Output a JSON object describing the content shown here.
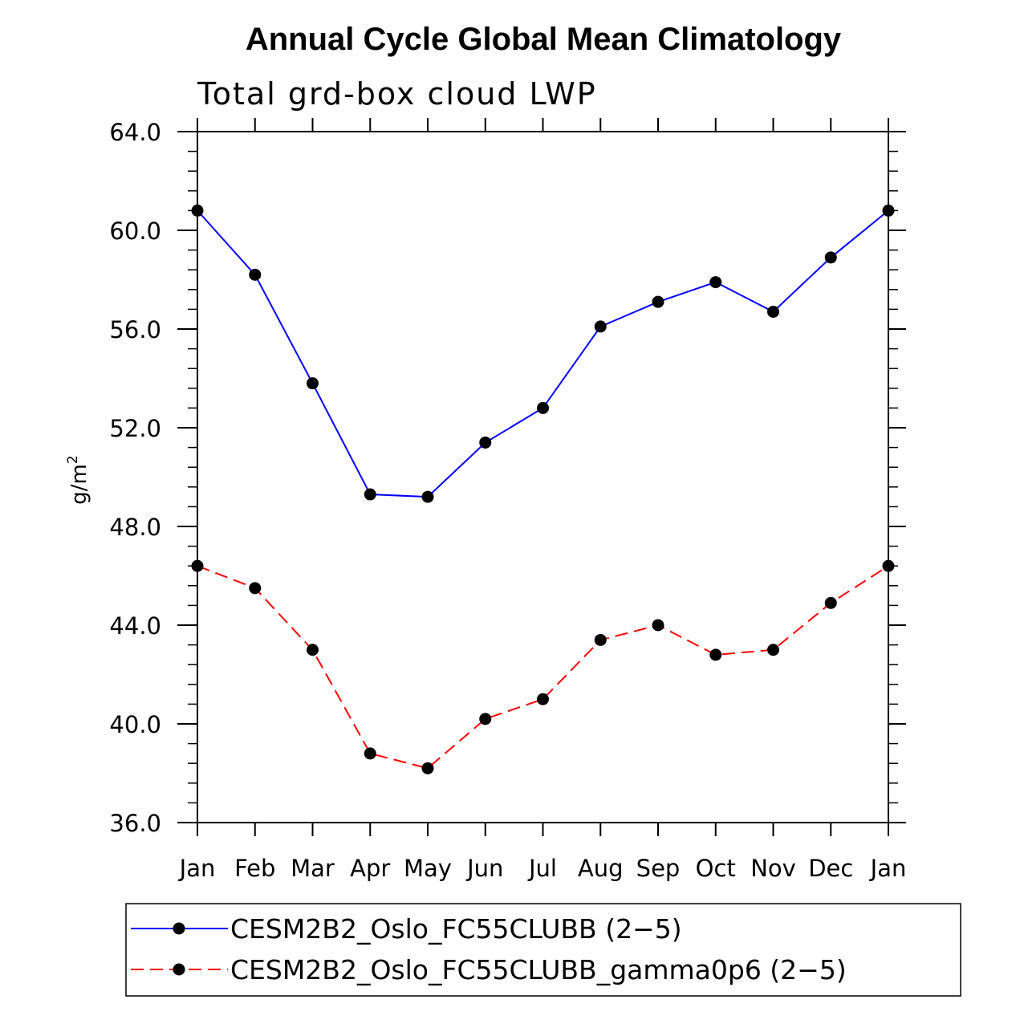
{
  "chart_data": {
    "type": "line",
    "title": "Annual Cycle Global Mean Climatology",
    "subtitle": "Total grd-box cloud LWP",
    "ylabel": "g/m",
    "ylabel_superscript": "2",
    "xlabel": "",
    "categories": [
      "Jan",
      "Feb",
      "Mar",
      "Apr",
      "May",
      "Jun",
      "Jul",
      "Aug",
      "Sep",
      "Oct",
      "Nov",
      "Dec",
      "Jan"
    ],
    "ylim": [
      36,
      64
    ],
    "yticks": [
      "36.0",
      "40.0",
      "44.0",
      "48.0",
      "52.0",
      "56.0",
      "60.0",
      "64.0"
    ],
    "grid": false,
    "legend_position": "bottom",
    "series": [
      {
        "name": "CESM2B2_Oslo_FC55CLUBB (2-5)",
        "legend_label": "CESM2B2_Oslo_FC55CLUBB (2−5)",
        "color": "#0000ff",
        "dash": "solid",
        "values": [
          60.8,
          58.2,
          53.8,
          49.3,
          49.2,
          51.4,
          52.8,
          56.1,
          57.1,
          57.9,
          56.7,
          58.9,
          60.8
        ]
      },
      {
        "name": "CESM2B2_Oslo_FC55CLUBB_gamma0p6 (2-5)",
        "legend_label": "CESM2B2_Oslo_FC55CLUBB_gamma0p6 (2−5)",
        "color": "#ff0000",
        "dash": "dashed",
        "values": [
          46.4,
          45.5,
          43.0,
          38.8,
          38.2,
          40.2,
          41.0,
          43.4,
          44.0,
          42.8,
          43.0,
          44.9,
          46.4
        ]
      }
    ]
  }
}
